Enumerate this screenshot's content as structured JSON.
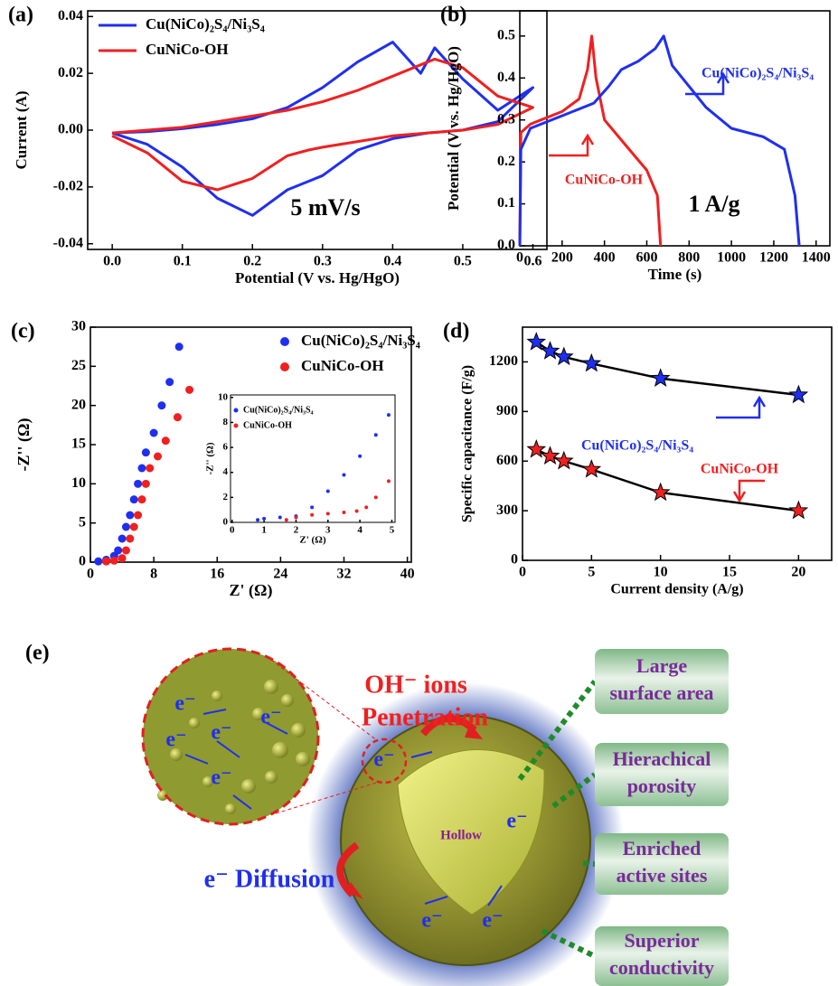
{
  "chart_data": [
    {
      "type": "line",
      "panel": "(a)",
      "xlabel": "Potential (V vs. Hg/HgO)",
      "ylabel": "Current (A)",
      "xlim": [
        -0.035,
        0.62
      ],
      "ylim": [
        -0.042,
        0.042
      ],
      "xticks": [
        {
          "value": 0,
          "label": "0.0"
        },
        0.1,
        0.2,
        0.3,
        0.4,
        0.5,
        0.6
      ],
      "yticks": [
        -0.04,
        -0.02,
        {
          "value": 0,
          "label": "0.00"
        },
        0.02,
        0.04
      ],
      "legend": "upper left",
      "annotations": [
        "5 mV/s"
      ],
      "x": [
        0,
        0.05,
        0.1,
        0.15,
        0.2,
        0.25,
        0.3,
        0.35,
        0.4,
        0.44,
        0.46,
        0.5,
        0.55,
        0.6,
        0.55,
        0.5,
        0.45,
        0.4,
        0.35,
        0.3,
        0.28,
        0.25,
        0.2,
        0.15,
        0.1,
        0.05,
        0
      ],
      "series": [
        {
          "name": "Cu(NiCo)₂S₄/Ni₃S₄",
          "color": "#1f2ff0",
          "values": [
            -0.001,
            -0.0005,
            0.0005,
            0.002,
            0.004,
            0.008,
            0.015,
            0.024,
            0.031,
            0.02,
            0.029,
            0.018,
            0.007,
            0.015,
            0.003,
            0,
            -0.001,
            -0.003,
            -0.007,
            -0.016,
            -0.018,
            -0.021,
            -0.03,
            -0.024,
            -0.013,
            -0.005,
            -0.001
          ]
        },
        {
          "name": "CuNiCo-OH",
          "color": "#f02020",
          "values": [
            -0.001,
            0,
            0.001,
            0.003,
            0.005,
            0.007,
            0.01,
            0.014,
            0.019,
            0.023,
            0.025,
            0.022,
            0.012,
            0.008,
            0.002,
            0,
            -0.001,
            -0.002,
            -0.004,
            -0.006,
            -0.007,
            -0.009,
            -0.017,
            -0.021,
            -0.018,
            -0.008,
            -0.002
          ]
        }
      ]
    },
    {
      "type": "line",
      "panel": "(b)",
      "xlabel": "Time (s)",
      "ylabel": "Potential (V vs. Hg/HgO)",
      "xlim": [
        0,
        1465
      ],
      "ylim": [
        0,
        0.56
      ],
      "xticks": [
        0,
        200,
        400,
        600,
        800,
        1000,
        1200,
        1400
      ],
      "yticks": [
        {
          "value": 0,
          "label": "0.0"
        },
        0.1,
        0.2,
        0.3,
        0.4,
        0.5
      ],
      "annotations": [
        "1 A/g"
      ],
      "series": [
        {
          "name": "CuNiCo-OH",
          "color": "#f02020",
          "x": [
            0,
            5,
            50,
            100,
            200,
            280,
            320,
            340,
            360,
            400,
            500,
            600,
            650,
            665
          ],
          "values": [
            0,
            0.27,
            0.29,
            0.3,
            0.32,
            0.35,
            0.42,
            0.5,
            0.4,
            0.3,
            0.24,
            0.18,
            0.12,
            0
          ]
        },
        {
          "name": "Cu(NiCo)₂S₄/Ni₃S₄",
          "color": "#1f2ff0",
          "x": [
            0,
            5,
            50,
            200,
            350,
            420,
            480,
            560,
            640,
            680,
            720,
            800,
            880,
            1000,
            1150,
            1250,
            1300,
            1320
          ],
          "values": [
            0,
            0.23,
            0.28,
            0.31,
            0.34,
            0.38,
            0.42,
            0.44,
            0.47,
            0.5,
            0.43,
            0.38,
            0.33,
            0.28,
            0.26,
            0.23,
            0.12,
            0
          ]
        }
      ]
    },
    {
      "type": "scatter",
      "panel": "(c)",
      "xlabel": "Z' (Ω)",
      "ylabel": "-Z'' (Ω)",
      "xlim": [
        0,
        40.5
      ],
      "ylim": [
        0,
        30
      ],
      "xticks": [
        0,
        8,
        16,
        24,
        32,
        40
      ],
      "yticks": [
        0,
        5,
        10,
        15,
        20,
        25,
        30
      ],
      "legend": "upper right",
      "series": [
        {
          "name": "Cu(NiCo)₂S₄/Ni₃S₄",
          "color": "#1f2ff0",
          "x": [
            1,
            2,
            3,
            3.5,
            4,
            4.5,
            5,
            5.5,
            6,
            6.5,
            7,
            8,
            9,
            10,
            11.2
          ],
          "values": [
            0.1,
            0.3,
            0.8,
            1.5,
            3,
            4.5,
            6,
            8,
            10,
            12,
            14,
            16.5,
            20,
            23,
            27.5
          ]
        },
        {
          "name": "CuNiCo-OH",
          "color": "#f02020",
          "x": [
            2,
            3,
            4,
            4.5,
            5,
            5.5,
            6,
            6.5,
            7,
            7.5,
            8.5,
            9.5,
            11,
            12.5
          ],
          "values": [
            0.1,
            0.2,
            0.5,
            1.5,
            3,
            4.5,
            6,
            8,
            10,
            12,
            13.5,
            15.5,
            18.5,
            22
          ]
        }
      ]
    },
    {
      "type": "scatter",
      "xlabel": "Z' (Ω)",
      "ylabel": "-Z'' (Ω)",
      "xlim": [
        -0.05,
        5.1
      ],
      "ylim": [
        0,
        10.2
      ],
      "xticks": [
        0,
        1,
        2,
        3,
        4,
        5
      ],
      "yticks": [
        0,
        2,
        4,
        6,
        8,
        10
      ],
      "legend": "upper left",
      "series": [
        {
          "name": "Cu(NiCo)₂S₄/Ni₃S₄",
          "color": "#1f2ff0",
          "x": [
            0.8,
            1,
            1.5,
            2,
            2.5,
            3,
            3.5,
            4,
            4.5,
            4.9
          ],
          "values": [
            0.2,
            0.3,
            0.4,
            0.5,
            1.2,
            2.5,
            3.8,
            5.3,
            7,
            8.6
          ]
        },
        {
          "name": "CuNiCo-OH",
          "color": "#f02020",
          "x": [
            1.7,
            2,
            2.5,
            3,
            3.5,
            3.9,
            4.2,
            4.5,
            4.9
          ],
          "values": [
            0.2,
            0.4,
            0.6,
            0.7,
            0.8,
            0.9,
            1.2,
            2,
            3.3
          ]
        }
      ]
    },
    {
      "type": "line",
      "panel": "(d)",
      "xlabel": "Current density (A/g)",
      "ylabel": "Specific capacitance (F/g)",
      "xlim": [
        0,
        22.4
      ],
      "ylim": [
        0,
        1410
      ],
      "xticks": [
        0,
        5,
        10,
        15,
        20
      ],
      "yticks": [
        0,
        300,
        600,
        900,
        1200
      ],
      "markers": "star",
      "x": [
        1,
        2,
        3,
        5,
        10,
        20
      ],
      "series": [
        {
          "name": "Cu(NiCo)₂S₄/Ni₃S₄",
          "color": "#1f2ff0",
          "values": [
            1320,
            1265,
            1230,
            1190,
            1100,
            1000
          ]
        },
        {
          "name": "CuNiCo-OH",
          "color": "#f02020",
          "values": [
            670,
            630,
            600,
            550,
            410,
            300
          ]
        }
      ]
    }
  ],
  "diagram": {
    "panel": "(e)",
    "penetration": [
      "OH⁻ ions",
      "Penetration"
    ],
    "diffusion": "e⁻ Diffusion",
    "hollow": "Hollow",
    "electron": "e⁻",
    "features": [
      [
        "Large",
        "surface area"
      ],
      [
        "Hierachical",
        "porosity"
      ],
      [
        "Enriched",
        "active sites"
      ],
      [
        "Superior",
        "conductivity"
      ]
    ]
  }
}
